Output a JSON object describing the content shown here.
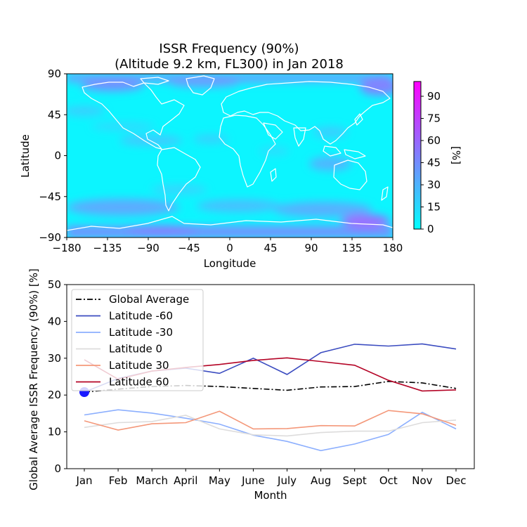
{
  "map": {
    "title_line1": "ISSR Frequency (90%)",
    "title_line2": "(Altitude 9.2 km, FL300) in Jan 2018",
    "xlabel": "Longitude",
    "ylabel": "Latitude",
    "xticks": [
      "−180",
      "−135",
      "−90",
      "−45",
      "0",
      "45",
      "90",
      "135",
      "180"
    ],
    "yticks": [
      "90",
      "45",
      "0",
      "−45",
      "−90"
    ],
    "xrange": [
      -180,
      180
    ],
    "yrange": [
      -90,
      90
    ],
    "colorbar": {
      "label": "[%]",
      "ticks": [
        "0",
        "15",
        "30",
        "45",
        "60",
        "75",
        "90"
      ],
      "range": [
        0,
        100
      ],
      "colors": [
        "#00ffff",
        "#ff00ff"
      ]
    },
    "land_outline_color": "#ffffff"
  },
  "chart_data": {
    "type": "line",
    "title": "",
    "xlabel": "Month",
    "ylabel": "Global Average ISSR Frequency (90%)   [%]",
    "categories": [
      "Jan",
      "Feb",
      "March",
      "April",
      "May",
      "June",
      "July",
      "Aug",
      "Sept",
      "Oct",
      "Nov",
      "Dec"
    ],
    "ylim": [
      0,
      50
    ],
    "yticks": [
      "0",
      "10",
      "20",
      "30",
      "40",
      "50"
    ],
    "legend_position": "top-left",
    "grid": false,
    "series": [
      {
        "name": "Global Average",
        "color": "#000000",
        "dash": "dashdot",
        "values": [
          20.8,
          21.6,
          22.3,
          22.6,
          22.3,
          21.8,
          21.3,
          22.2,
          22.3,
          23.7,
          23.3,
          21.8
        ]
      },
      {
        "name": "Latitude -60",
        "color": "#3b4cc0",
        "dash": "solid",
        "values": [
          20.8,
          24.5,
          26.5,
          27.3,
          25.9,
          30.0,
          25.6,
          31.5,
          33.8,
          33.3,
          33.9,
          32.5
        ]
      },
      {
        "name": "Latitude -30",
        "color": "#8caffe",
        "dash": "solid",
        "values": [
          14.6,
          16.0,
          15.1,
          13.7,
          12.1,
          9.1,
          7.4,
          4.9,
          6.7,
          9.3,
          15.3,
          10.8
        ]
      },
      {
        "name": "Latitude 0",
        "color": "#dddcdc",
        "dash": "solid",
        "values": [
          11.2,
          12.5,
          12.8,
          14.5,
          10.8,
          9.2,
          8.9,
          9.8,
          10.2,
          10.2,
          12.5,
          13.2
        ]
      },
      {
        "name": "Latitude 30",
        "color": "#f4987a",
        "dash": "solid",
        "values": [
          13.0,
          10.5,
          12.2,
          12.5,
          15.6,
          10.8,
          10.9,
          11.7,
          11.6,
          15.8,
          14.9,
          11.8
        ]
      },
      {
        "name": "Latitude 60",
        "color": "#b40426",
        "dash": "solid",
        "values": [
          29.6,
          24.3,
          26.5,
          27.5,
          28.3,
          29.4,
          30.1,
          29.1,
          28.1,
          24.0,
          21.1,
          21.4
        ]
      }
    ],
    "highlight_point": {
      "category": "Jan",
      "value": 20.8,
      "color": "#1a1aff"
    }
  }
}
